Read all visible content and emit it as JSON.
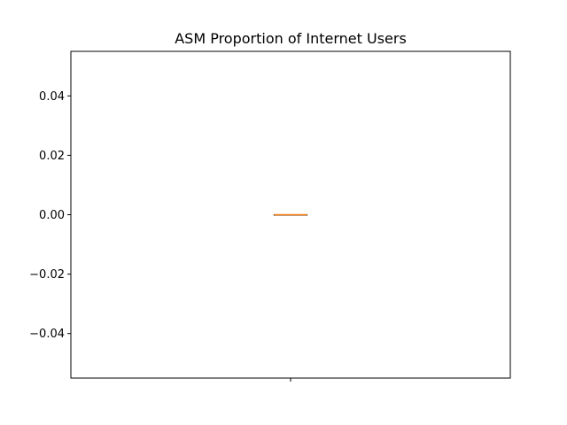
{
  "chart_data": {
    "type": "box",
    "title": "ASM Proportion of Internet Users",
    "xlabel": "",
    "ylabel": "",
    "ylim": [
      -0.055,
      0.055
    ],
    "yticks": [
      {
        "value": 0.04,
        "label": "0.04"
      },
      {
        "value": 0.02,
        "label": "0.02"
      },
      {
        "value": 0.0,
        "label": "0.00"
      },
      {
        "value": -0.02,
        "label": "−0.02"
      },
      {
        "value": -0.04,
        "label": "−0.04"
      }
    ],
    "xticks": [
      {
        "value": 1,
        "label": ""
      }
    ],
    "xlim": [
      0.5,
      1.5
    ],
    "boxes": [
      {
        "position": 1,
        "min": 0.0,
        "q1": 0.0,
        "median": 0.0,
        "q3": 0.0,
        "max": 0.0
      }
    ],
    "grid": false,
    "colors": {
      "box": "#000000",
      "median": "#ff7f0e",
      "axes": "#000000"
    }
  }
}
